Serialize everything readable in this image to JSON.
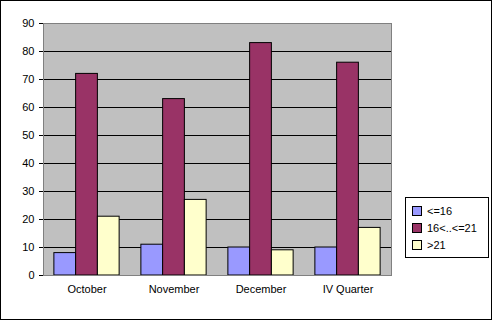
{
  "chart_data": {
    "type": "bar",
    "categories": [
      "October",
      "November",
      "December",
      "IV Quarter"
    ],
    "series": [
      {
        "name": "<=16",
        "color": "#9999ff",
        "values": [
          8,
          11,
          10,
          10
        ]
      },
      {
        "name": "16<..<=21",
        "color": "#993366",
        "values": [
          72,
          63,
          83,
          76
        ]
      },
      {
        "name": ">21",
        "color": "#ffffcc",
        "values": [
          21,
          27,
          9,
          17
        ]
      }
    ],
    "ylim": [
      0,
      90
    ],
    "yticks": [
      0,
      10,
      20,
      30,
      40,
      50,
      60,
      70,
      80,
      90
    ],
    "grid": true,
    "legend": "right"
  }
}
